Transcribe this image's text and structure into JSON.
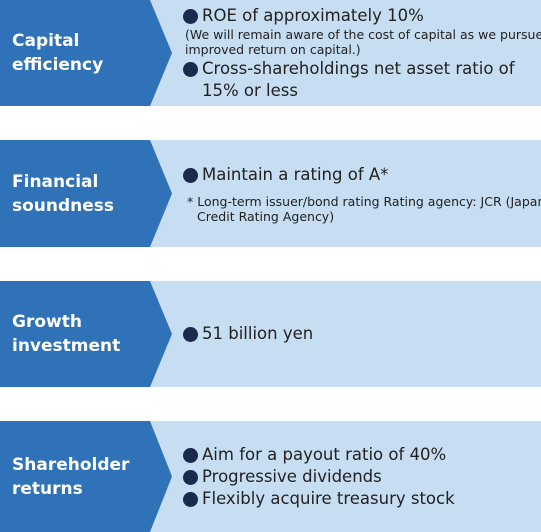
{
  "rows": [
    {
      "label": "Capital efficiency",
      "items": [
        {
          "text": "ROE of approximately 10%",
          "note": "(We will remain aware of the cost of capital as we pursue improved return on capital.)"
        },
        {
          "text": "Cross-shareholdings net asset ratio of 15% or less"
        }
      ]
    },
    {
      "label": "Financial soundness",
      "items": [
        {
          "text": "Maintain a rating of A*",
          "note": "* Long-term issuer/bond rating Rating agency: JCR (Japan Credit Rating Agency)"
        }
      ]
    },
    {
      "label": "Growth investment",
      "items": [
        {
          "text": "51 billion yen"
        }
      ]
    },
    {
      "label": "Shareholder returns",
      "items": [
        {
          "text": "Aim for a payout ratio of 40%"
        },
        {
          "text": "Progressive dividends"
        },
        {
          "text": "Flexibly acquire treasury stock"
        }
      ]
    }
  ]
}
